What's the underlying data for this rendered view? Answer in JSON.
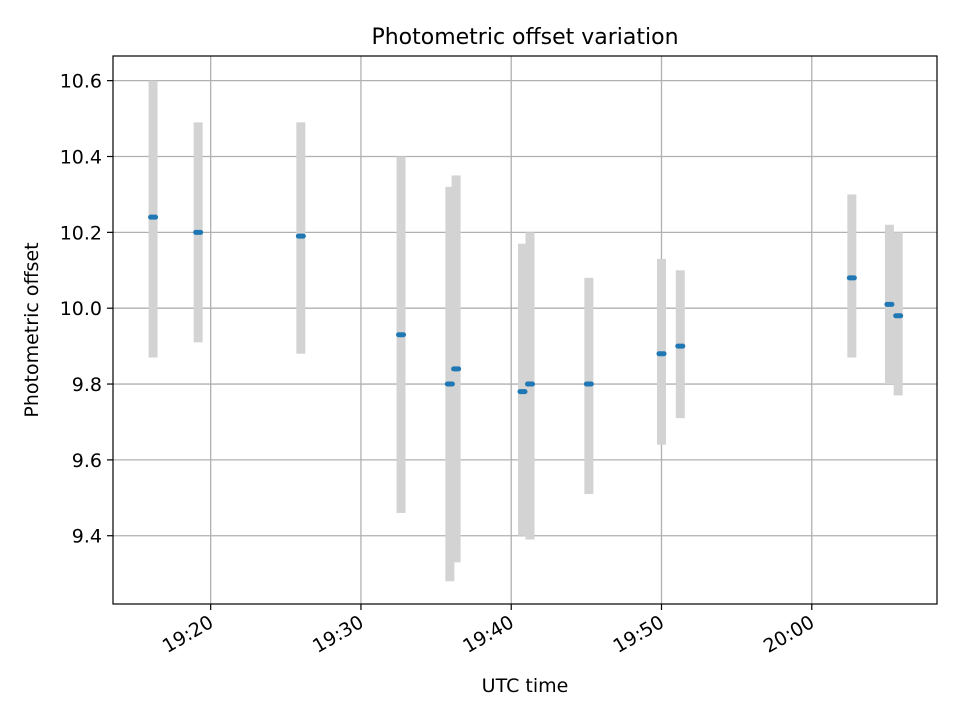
{
  "chart_data": {
    "type": "scatter",
    "title": "Photometric offset variation",
    "xlabel": "UTC time",
    "ylabel": "Photometric offset",
    "grid": true,
    "x_ticks": [
      "19:20",
      "19:30",
      "19:40",
      "19:50",
      "20:00"
    ],
    "y_ticks": [
      "9.4",
      "9.6",
      "9.8",
      "10.0",
      "10.2",
      "10.4",
      "10.6"
    ],
    "xlim": [
      "19:13:30",
      "20:08:20"
    ],
    "ylim": [
      9.22,
      10.665
    ],
    "colors": {
      "points": "#1f77b4",
      "error_bars": "#d3d3d3",
      "grid": "#b0b0b0"
    },
    "series": [
      {
        "points": [
          {
            "x": "19:16:10",
            "y": 10.24,
            "err_low": 9.87,
            "err_high": 10.6
          },
          {
            "x": "19:19:10",
            "y": 10.2,
            "err_low": 9.91,
            "err_high": 10.49
          },
          {
            "x": "19:26:00",
            "y": 10.19,
            "err_low": 9.88,
            "err_high": 10.49
          },
          {
            "x": "19:32:40",
            "y": 9.93,
            "err_low": 9.46,
            "err_high": 10.4
          },
          {
            "x": "19:35:55",
            "y": 9.8,
            "err_low": 9.28,
            "err_high": 10.32
          },
          {
            "x": "19:36:20",
            "y": 9.84,
            "err_low": 9.33,
            "err_high": 10.35
          },
          {
            "x": "19:40:45",
            "y": 9.78,
            "err_low": 9.4,
            "err_high": 10.17
          },
          {
            "x": "19:41:15",
            "y": 9.8,
            "err_low": 9.39,
            "err_high": 10.2
          },
          {
            "x": "19:45:10",
            "y": 9.8,
            "err_low": 9.51,
            "err_high": 10.08
          },
          {
            "x": "19:50:00",
            "y": 9.88,
            "err_low": 9.64,
            "err_high": 10.13
          },
          {
            "x": "19:51:15",
            "y": 9.9,
            "err_low": 9.71,
            "err_high": 10.1
          },
          {
            "x": "20:02:40",
            "y": 10.08,
            "err_low": 9.87,
            "err_high": 10.3
          },
          {
            "x": "20:05:10",
            "y": 10.01,
            "err_low": 9.8,
            "err_high": 10.22
          },
          {
            "x": "20:05:45",
            "y": 9.98,
            "err_low": 9.77,
            "err_high": 10.2
          }
        ]
      }
    ]
  }
}
